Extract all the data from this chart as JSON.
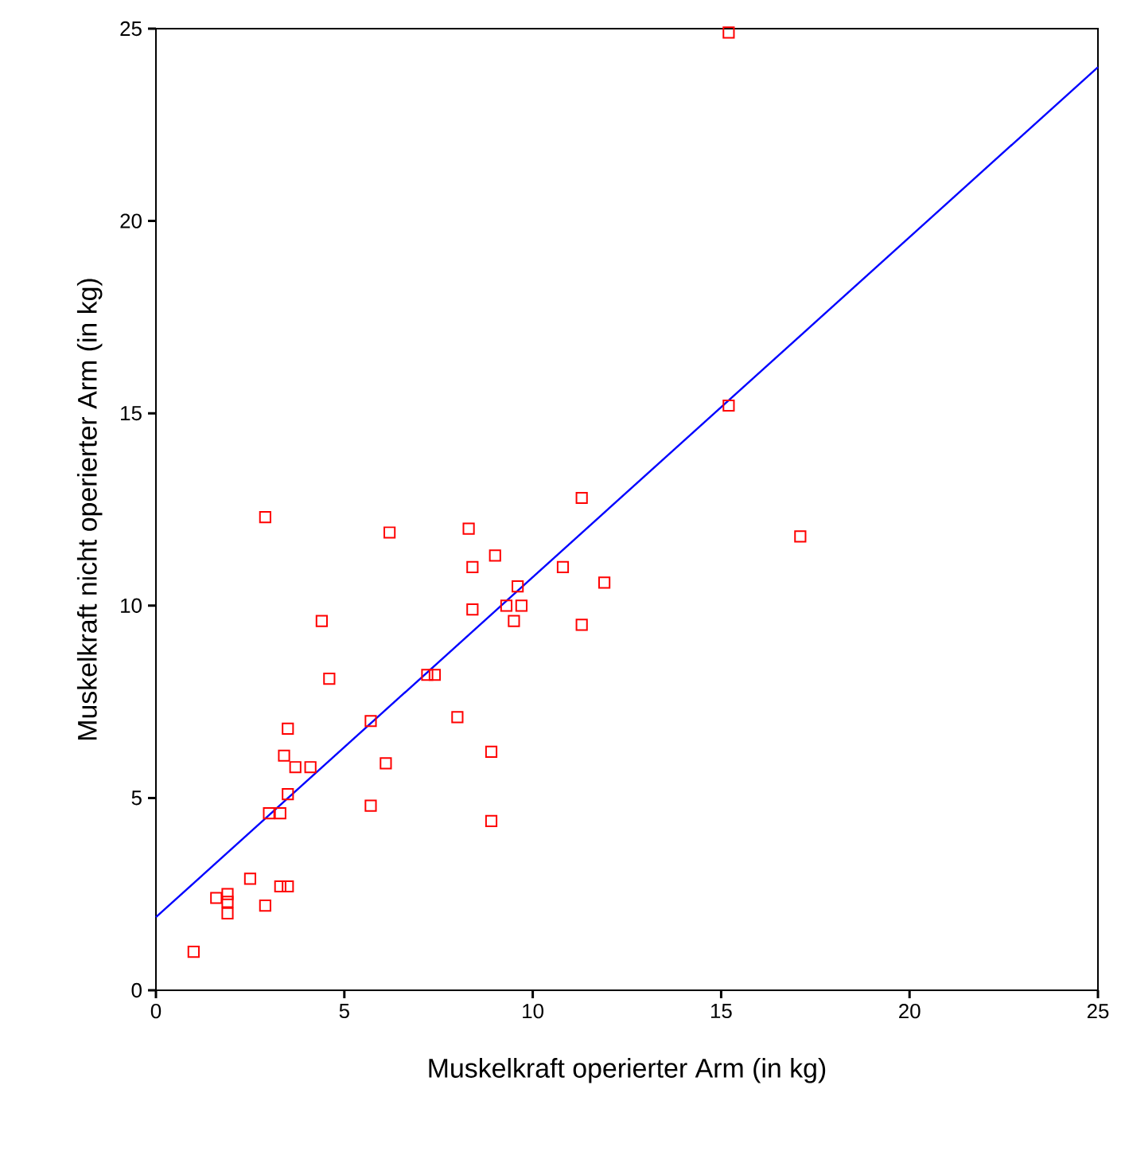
{
  "chart_data": {
    "type": "scatter",
    "xlabel": "Muskelkraft operierter Arm (in kg)",
    "ylabel": "Muskelkraft nicht operierter Arm (in kg)",
    "xlim": [
      0,
      25
    ],
    "ylim": [
      0,
      25
    ],
    "xticks": [
      0,
      5,
      10,
      15,
      20,
      25
    ],
    "yticks": [
      0,
      5,
      10,
      15,
      20,
      25
    ],
    "grid": false,
    "series": [
      {
        "color": "#ff0000",
        "marker": "square",
        "x": [
          1.0,
          1.6,
          1.9,
          1.9,
          1.9,
          2.5,
          2.9,
          3.3,
          3.5,
          3.0,
          3.3,
          3.5,
          3.4,
          3.7,
          4.1,
          3.5,
          2.9,
          4.4,
          4.6,
          5.7,
          5.7,
          6.1,
          6.2,
          7.2,
          7.4,
          8.0,
          8.3,
          8.4,
          8.4,
          8.9,
          8.9,
          9.0,
          9.3,
          9.5,
          9.6,
          9.7,
          10.8,
          11.3,
          11.3,
          11.9,
          15.2,
          15.2,
          17.1
        ],
        "values": [
          1.0,
          2.4,
          2.3,
          2.0,
          2.5,
          2.9,
          2.2,
          2.7,
          2.7,
          4.6,
          4.6,
          5.1,
          6.1,
          5.8,
          5.8,
          6.8,
          12.3,
          9.6,
          8.1,
          4.8,
          7.0,
          5.9,
          11.9,
          8.2,
          8.2,
          7.1,
          12.0,
          11.0,
          9.9,
          6.2,
          4.4,
          11.3,
          10.0,
          9.6,
          10.5,
          10.0,
          11.0,
          12.8,
          9.5,
          10.6,
          24.9,
          15.2,
          11.8
        ]
      },
      {
        "type": "line",
        "color": "#0000ff",
        "marker": "none",
        "line_style": "solid",
        "x": [
          0,
          25
        ],
        "values": [
          1.9,
          24.0
        ]
      }
    ]
  }
}
